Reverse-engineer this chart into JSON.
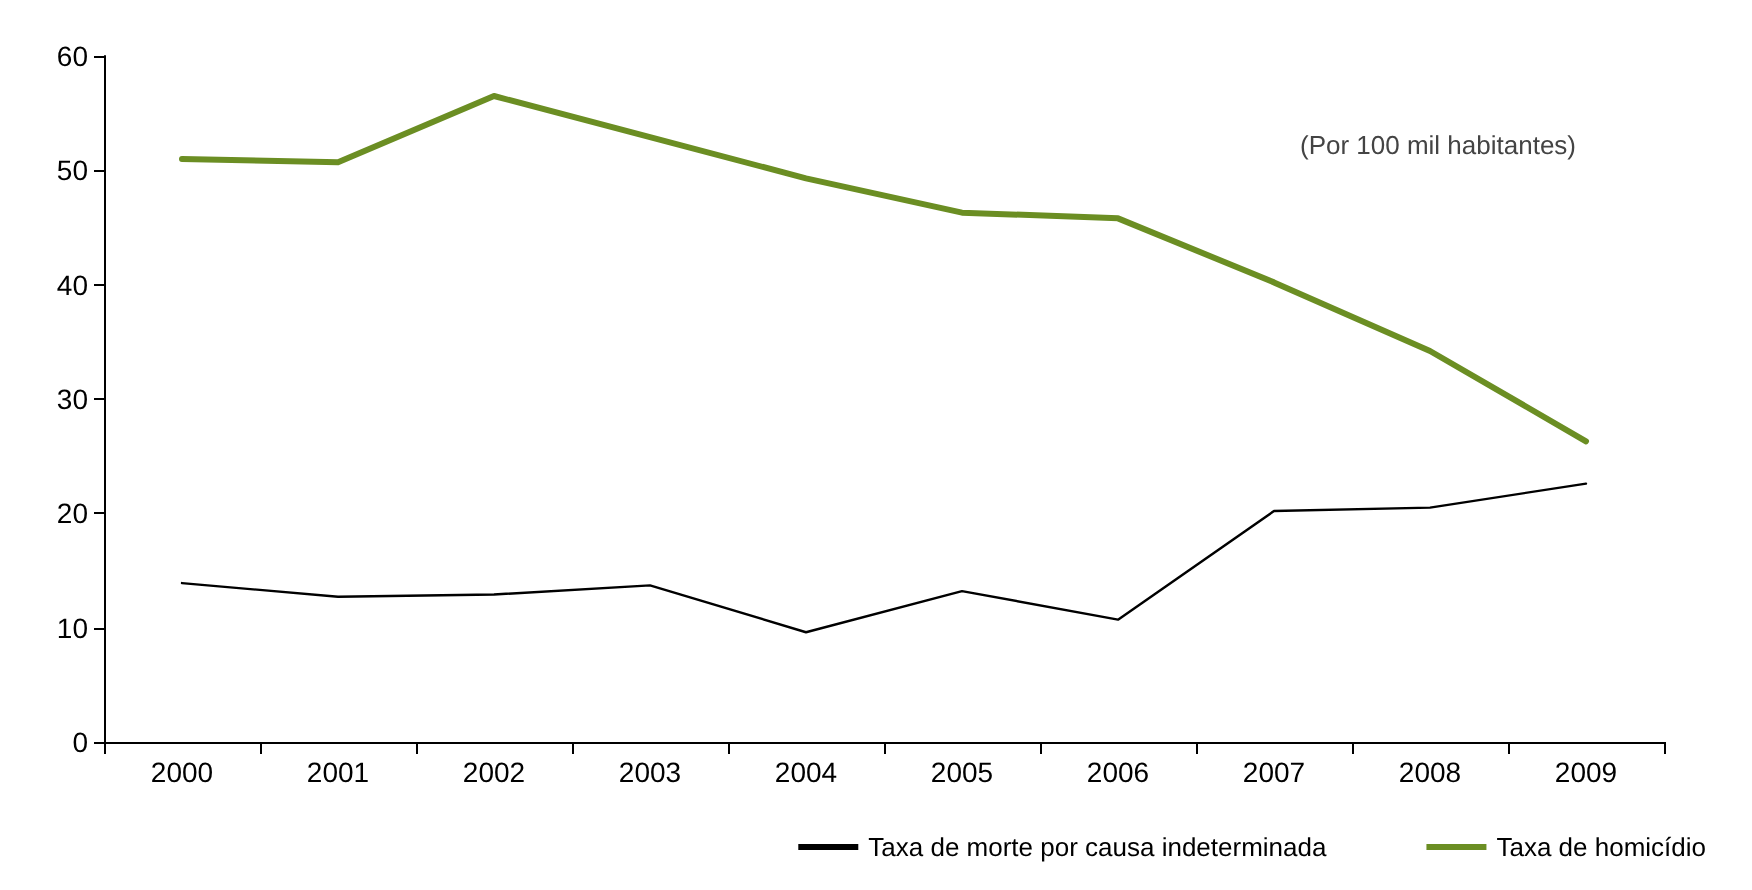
{
  "chart_data": {
    "type": "line",
    "categories": [
      "2000",
      "2001",
      "2002",
      "2003",
      "2004",
      "2005",
      "2006",
      "2007",
      "2008",
      "2009"
    ],
    "series": [
      {
        "name": "Taxa de morte por causa indeterminada",
        "color": "#000000",
        "values": [
          13.9,
          12.7,
          12.9,
          13.7,
          9.6,
          13.2,
          10.7,
          20.2,
          20.5,
          22.6
        ]
      },
      {
        "name": "Taxa de homicídio",
        "color": "#6b8e23",
        "values": [
          51.0,
          50.7,
          56.5,
          52.9,
          49.3,
          46.3,
          45.8,
          40.2,
          34.2,
          26.3
        ]
      }
    ],
    "ylim": [
      0,
      60
    ],
    "yticks": [
      0,
      10,
      20,
      30,
      40,
      50,
      60
    ],
    "annotations": [
      "(Por 100 mil habitantes)"
    ],
    "grid": false,
    "legend": "bottom right",
    "marker": "none",
    "line_style": "solid"
  }
}
